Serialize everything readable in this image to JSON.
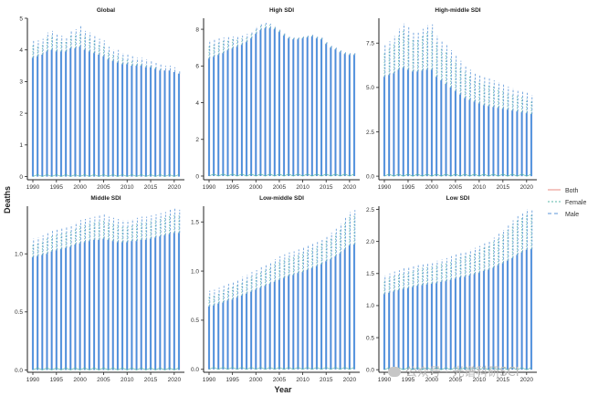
{
  "axes": {
    "x_title": "Year",
    "y_title": "Deaths"
  },
  "legend": {
    "items": [
      {
        "label": "Both",
        "color": "#e88b82",
        "dash": ""
      },
      {
        "label": "Female",
        "color": "#58b7a7",
        "dash": "2,2"
      },
      {
        "label": "Male",
        "color": "#5b95d8",
        "dash": "4,3"
      }
    ]
  },
  "watermark": {
    "text": "公众号 · 光谱科研SCI"
  },
  "colors": {
    "both": "#e88b82",
    "female": "#58b7a7",
    "male": "#5b95d8",
    "bars": "#4a8fdc",
    "both_bars": "#b9a6d6"
  },
  "chart_data": [
    {
      "type": "bar",
      "title": "Global",
      "x": [
        1990,
        1991,
        1992,
        1993,
        1994,
        1995,
        1996,
        1997,
        1998,
        1999,
        2000,
        2001,
        2002,
        2003,
        2004,
        2005,
        2006,
        2007,
        2008,
        2009,
        2010,
        2011,
        2012,
        2013,
        2014,
        2015,
        2016,
        2017,
        2018,
        2019,
        2020,
        2021
      ],
      "xticks": [
        1990,
        1995,
        2000,
        2005,
        2010,
        2015,
        2020
      ],
      "yticks": [
        0,
        1,
        2,
        3,
        4,
        5
      ],
      "ylim": [
        -0.1,
        5.0
      ],
      "ylabel": "Deaths",
      "xlabel": "Year",
      "series": [
        {
          "name": "Male",
          "values": [
            4.3,
            4.3,
            4.35,
            4.55,
            4.6,
            4.5,
            4.45,
            4.4,
            4.6,
            4.65,
            4.75,
            4.6,
            4.55,
            4.45,
            4.35,
            4.3,
            4.1,
            4.0,
            4.0,
            3.9,
            3.85,
            3.8,
            3.75,
            3.75,
            3.7,
            3.65,
            3.6,
            3.55,
            3.5,
            3.5,
            3.45,
            3.35
          ]
        },
        {
          "name": "Female",
          "values": [
            4.15,
            4.15,
            4.2,
            4.4,
            4.45,
            4.35,
            4.3,
            4.25,
            4.45,
            4.5,
            4.55,
            4.45,
            4.4,
            4.3,
            4.2,
            4.15,
            3.95,
            3.85,
            3.85,
            3.75,
            3.7,
            3.65,
            3.6,
            3.6,
            3.55,
            3.5,
            3.45,
            3.4,
            3.35,
            3.35,
            3.3,
            3.2
          ]
        },
        {
          "name": "Both",
          "values": [
            3.75,
            3.8,
            3.85,
            3.95,
            4.0,
            3.95,
            3.95,
            3.95,
            4.05,
            4.05,
            4.1,
            4.0,
            3.95,
            3.9,
            3.85,
            3.8,
            3.7,
            3.65,
            3.6,
            3.55,
            3.55,
            3.5,
            3.5,
            3.5,
            3.45,
            3.45,
            3.4,
            3.35,
            3.35,
            3.35,
            3.3,
            3.25
          ]
        }
      ]
    },
    {
      "type": "bar",
      "title": "High SDI",
      "x": [
        1990,
        1991,
        1992,
        1993,
        1994,
        1995,
        1996,
        1997,
        1998,
        1999,
        2000,
        2001,
        2002,
        2003,
        2004,
        2005,
        2006,
        2007,
        2008,
        2009,
        2010,
        2011,
        2012,
        2013,
        2014,
        2015,
        2016,
        2017,
        2018,
        2019,
        2020,
        2021
      ],
      "xticks": [
        1990,
        1995,
        2000,
        2005,
        2010,
        2015,
        2020
      ],
      "yticks": [
        0,
        2,
        4,
        6,
        8
      ],
      "ylim": [
        -0.2,
        8.6
      ],
      "ylabel": "Deaths",
      "xlabel": "Year",
      "series": [
        {
          "name": "Male",
          "values": [
            7.4,
            7.45,
            7.5,
            7.55,
            7.6,
            7.6,
            7.6,
            7.65,
            7.75,
            7.9,
            8.15,
            8.3,
            8.35,
            8.3,
            8.2,
            8.0,
            7.8,
            7.6,
            7.55,
            7.55,
            7.6,
            7.65,
            7.7,
            7.6,
            7.55,
            7.3,
            7.1,
            7.0,
            6.85,
            6.75,
            6.7,
            6.7
          ]
        },
        {
          "name": "Female",
          "values": [
            7.1,
            7.15,
            7.25,
            7.35,
            7.4,
            7.45,
            7.45,
            7.5,
            7.6,
            7.75,
            8.05,
            8.2,
            8.25,
            8.25,
            8.15,
            7.95,
            7.75,
            7.55,
            7.5,
            7.5,
            7.55,
            7.6,
            7.65,
            7.55,
            7.5,
            7.25,
            7.05,
            6.95,
            6.8,
            6.7,
            6.65,
            6.65
          ]
        },
        {
          "name": "Both",
          "values": [
            6.4,
            6.5,
            6.6,
            6.7,
            6.85,
            6.95,
            7.05,
            7.15,
            7.3,
            7.5,
            7.75,
            7.95,
            8.05,
            8.05,
            8.0,
            7.85,
            7.65,
            7.5,
            7.45,
            7.45,
            7.5,
            7.55,
            7.6,
            7.5,
            7.45,
            7.2,
            7.0,
            6.9,
            6.75,
            6.65,
            6.6,
            6.6
          ]
        }
      ]
    },
    {
      "type": "bar",
      "title": "High-middle SDI",
      "x": [
        1990,
        1991,
        1992,
        1993,
        1994,
        1995,
        1996,
        1997,
        1998,
        1999,
        2000,
        2001,
        2002,
        2003,
        2004,
        2005,
        2006,
        2007,
        2008,
        2009,
        2010,
        2011,
        2012,
        2013,
        2014,
        2015,
        2016,
        2017,
        2018,
        2019,
        2020,
        2021
      ],
      "xticks": [
        1990,
        1995,
        2000,
        2005,
        2010,
        2015,
        2020
      ],
      "yticks": [
        0.0,
        2.5,
        5.0,
        7.5
      ],
      "yticklabels": [
        "0.0",
        "2.5",
        "5.0",
        "7.5"
      ],
      "ylim": [
        -0.2,
        8.9
      ],
      "ylabel": "Deaths",
      "xlabel": "Year",
      "series": [
        {
          "name": "Male",
          "values": [
            7.4,
            7.6,
            7.9,
            8.3,
            8.6,
            8.4,
            8.1,
            8.1,
            8.3,
            8.5,
            8.55,
            7.9,
            7.6,
            7.4,
            7.1,
            6.8,
            6.5,
            6.2,
            6.0,
            5.8,
            5.7,
            5.6,
            5.5,
            5.4,
            5.3,
            5.2,
            5.05,
            4.95,
            4.85,
            4.8,
            4.7,
            4.55
          ]
        },
        {
          "name": "Female",
          "values": [
            7.0,
            7.2,
            7.5,
            7.9,
            8.2,
            8.0,
            7.7,
            7.7,
            7.9,
            8.1,
            8.2,
            7.5,
            7.2,
            7.0,
            6.7,
            6.4,
            6.1,
            5.85,
            5.65,
            5.45,
            5.35,
            5.25,
            5.15,
            5.05,
            4.95,
            4.85,
            4.7,
            4.6,
            4.5,
            4.45,
            4.35,
            4.2
          ]
        },
        {
          "name": "Both",
          "values": [
            5.6,
            5.7,
            5.8,
            6.0,
            6.1,
            6.0,
            5.9,
            5.9,
            5.95,
            6.0,
            6.0,
            5.6,
            5.4,
            5.2,
            5.0,
            4.8,
            4.6,
            4.4,
            4.3,
            4.2,
            4.1,
            4.0,
            3.95,
            3.9,
            3.85,
            3.8,
            3.75,
            3.7,
            3.65,
            3.6,
            3.55,
            3.5
          ]
        }
      ]
    },
    {
      "type": "bar",
      "title": "Middle SDI",
      "x": [
        1990,
        1991,
        1992,
        1993,
        1994,
        1995,
        1996,
        1997,
        1998,
        1999,
        2000,
        2001,
        2002,
        2003,
        2004,
        2005,
        2006,
        2007,
        2008,
        2009,
        2010,
        2011,
        2012,
        2013,
        2014,
        2015,
        2016,
        2017,
        2018,
        2019,
        2020,
        2021
      ],
      "xticks": [
        1990,
        1995,
        2000,
        2005,
        2010,
        2015,
        2020
      ],
      "yticks": [
        0.0,
        0.5,
        1.0
      ],
      "yticklabels": [
        "0.0",
        "0.5",
        "1.0"
      ],
      "ylim": [
        -0.02,
        1.41
      ],
      "ylabel": "Deaths",
      "xlabel": "Year",
      "series": [
        {
          "name": "Male",
          "values": [
            1.13,
            1.14,
            1.16,
            1.18,
            1.2,
            1.21,
            1.22,
            1.23,
            1.25,
            1.27,
            1.29,
            1.3,
            1.31,
            1.32,
            1.33,
            1.34,
            1.32,
            1.31,
            1.3,
            1.29,
            1.29,
            1.3,
            1.31,
            1.32,
            1.32,
            1.33,
            1.34,
            1.35,
            1.36,
            1.38,
            1.39,
            1.38
          ]
        },
        {
          "name": "Female",
          "values": [
            1.08,
            1.09,
            1.11,
            1.13,
            1.15,
            1.16,
            1.17,
            1.18,
            1.2,
            1.22,
            1.24,
            1.25,
            1.26,
            1.27,
            1.28,
            1.29,
            1.27,
            1.26,
            1.25,
            1.24,
            1.24,
            1.25,
            1.26,
            1.27,
            1.27,
            1.28,
            1.29,
            1.3,
            1.31,
            1.33,
            1.34,
            1.33
          ]
        },
        {
          "name": "Both",
          "values": [
            0.97,
            0.98,
            0.99,
            1.0,
            1.02,
            1.03,
            1.04,
            1.05,
            1.06,
            1.08,
            1.09,
            1.1,
            1.11,
            1.12,
            1.12,
            1.13,
            1.12,
            1.11,
            1.1,
            1.1,
            1.1,
            1.11,
            1.11,
            1.12,
            1.12,
            1.13,
            1.14,
            1.15,
            1.16,
            1.17,
            1.18,
            1.18
          ]
        }
      ]
    },
    {
      "type": "bar",
      "title": "Low-middle SDI",
      "x": [
        1990,
        1991,
        1992,
        1993,
        1994,
        1995,
        1996,
        1997,
        1998,
        1999,
        2000,
        2001,
        2002,
        2003,
        2004,
        2005,
        2006,
        2007,
        2008,
        2009,
        2010,
        2011,
        2012,
        2013,
        2014,
        2015,
        2016,
        2017,
        2018,
        2019,
        2020,
        2021
      ],
      "xticks": [
        1990,
        1995,
        2000,
        2005,
        2010,
        2015,
        2020
      ],
      "yticks": [
        0.0,
        0.5,
        1.0,
        1.5
      ],
      "yticklabels": [
        "0.0",
        "0.5",
        "1.0",
        "1.5"
      ],
      "ylim": [
        -0.03,
        1.66
      ],
      "ylabel": "Deaths",
      "xlabel": "Year",
      "series": [
        {
          "name": "Male",
          "values": [
            0.8,
            0.81,
            0.83,
            0.85,
            0.87,
            0.89,
            0.91,
            0.94,
            0.96,
            0.99,
            1.01,
            1.04,
            1.07,
            1.09,
            1.12,
            1.15,
            1.17,
            1.19,
            1.2,
            1.22,
            1.24,
            1.26,
            1.28,
            1.3,
            1.33,
            1.36,
            1.39,
            1.43,
            1.48,
            1.55,
            1.6,
            1.62
          ]
        },
        {
          "name": "Female",
          "values": [
            0.75,
            0.76,
            0.78,
            0.8,
            0.82,
            0.84,
            0.86,
            0.89,
            0.91,
            0.94,
            0.96,
            0.99,
            1.02,
            1.04,
            1.07,
            1.1,
            1.12,
            1.14,
            1.15,
            1.17,
            1.19,
            1.21,
            1.23,
            1.25,
            1.28,
            1.31,
            1.34,
            1.38,
            1.43,
            1.5,
            1.55,
            1.57
          ]
        },
        {
          "name": "Both",
          "values": [
            0.64,
            0.65,
            0.67,
            0.68,
            0.7,
            0.71,
            0.73,
            0.75,
            0.77,
            0.79,
            0.81,
            0.83,
            0.85,
            0.87,
            0.89,
            0.91,
            0.93,
            0.95,
            0.96,
            0.98,
            0.99,
            1.01,
            1.03,
            1.05,
            1.07,
            1.1,
            1.12,
            1.15,
            1.18,
            1.22,
            1.26,
            1.27
          ]
        }
      ]
    },
    {
      "type": "bar",
      "title": "Low SDI",
      "x": [
        1990,
        1991,
        1992,
        1993,
        1994,
        1995,
        1996,
        1997,
        1998,
        1999,
        2000,
        2001,
        2002,
        2003,
        2004,
        2005,
        2006,
        2007,
        2008,
        2009,
        2010,
        2011,
        2012,
        2013,
        2014,
        2015,
        2016,
        2017,
        2018,
        2019,
        2020,
        2021
      ],
      "xticks": [
        1990,
        1995,
        2000,
        2005,
        2010,
        2015,
        2020
      ],
      "yticks": [
        0.0,
        0.5,
        1.0,
        1.5,
        2.0,
        2.5
      ],
      "yticklabels": [
        "0.0",
        "0.5",
        "1.0",
        "1.5",
        "2.0",
        "2.5"
      ],
      "ylim": [
        -0.04,
        2.55
      ],
      "ylabel": "Deaths",
      "xlabel": "Year",
      "series": [
        {
          "name": "Male",
          "values": [
            1.47,
            1.5,
            1.53,
            1.55,
            1.58,
            1.6,
            1.62,
            1.65,
            1.66,
            1.67,
            1.68,
            1.7,
            1.72,
            1.74,
            1.77,
            1.8,
            1.82,
            1.84,
            1.87,
            1.9,
            1.93,
            1.97,
            2.01,
            2.06,
            2.12,
            2.18,
            2.25,
            2.33,
            2.4,
            2.45,
            2.5,
            2.5
          ]
        },
        {
          "name": "Female",
          "values": [
            1.4,
            1.43,
            1.46,
            1.48,
            1.51,
            1.53,
            1.55,
            1.58,
            1.59,
            1.6,
            1.61,
            1.63,
            1.65,
            1.67,
            1.7,
            1.73,
            1.75,
            1.77,
            1.8,
            1.83,
            1.86,
            1.9,
            1.94,
            1.99,
            2.05,
            2.11,
            2.18,
            2.26,
            2.33,
            2.38,
            2.43,
            2.43
          ]
        },
        {
          "name": "Both",
          "values": [
            1.18,
            1.2,
            1.22,
            1.24,
            1.26,
            1.27,
            1.29,
            1.31,
            1.32,
            1.33,
            1.34,
            1.35,
            1.37,
            1.38,
            1.4,
            1.42,
            1.44,
            1.45,
            1.47,
            1.49,
            1.51,
            1.54,
            1.56,
            1.59,
            1.63,
            1.66,
            1.7,
            1.74,
            1.79,
            1.83,
            1.87,
            1.88
          ]
        }
      ]
    }
  ]
}
